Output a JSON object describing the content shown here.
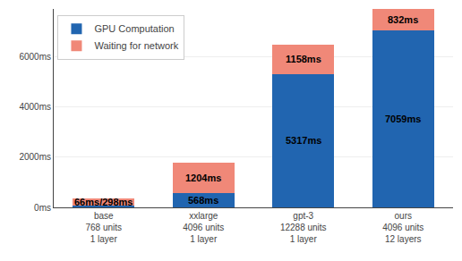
{
  "chart_data": {
    "type": "bar",
    "stacked": true,
    "categories": [
      "base\n768 units\n1 layer",
      "xxlarge\n4096 units\n1 layer",
      "gpt-3\n12288 units\n1 layer",
      "ours\n4096 units\n12 layers"
    ],
    "series": [
      {
        "name": "GPU Computation",
        "color": "#2165b0",
        "values": [
          66,
          568,
          5317,
          7059
        ],
        "value_labels": [
          "66ms/298ms",
          "568ms",
          "5317ms",
          "7059ms"
        ]
      },
      {
        "name": "Waiting for network",
        "color": "#f08878",
        "values": [
          298,
          1204,
          1158,
          832
        ],
        "value_labels": [
          null,
          "1204ms",
          "1158ms",
          "832ms"
        ]
      }
    ],
    "data_labels": true,
    "ylim": [
      0,
      7900
    ],
    "yticks": [
      {
        "value": 0,
        "label": "0ms"
      },
      {
        "value": 2000,
        "label": "2000ms"
      },
      {
        "value": 4000,
        "label": "4000ms"
      },
      {
        "value": 6000,
        "label": "6000ms"
      }
    ],
    "grid": true,
    "legend": "upper left"
  }
}
